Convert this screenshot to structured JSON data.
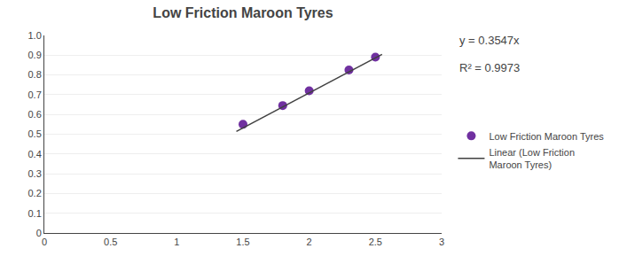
{
  "chart_data": {
    "type": "scatter",
    "title": "Low Friction Maroon Tyres",
    "series": [
      {
        "name": "Low Friction Maroon Tyres",
        "type": "scatter",
        "color": "#7030A0",
        "x": [
          1.5,
          1.8,
          2.0,
          2.3,
          2.5
        ],
        "values": [
          0.55,
          0.645,
          0.72,
          0.825,
          0.89
        ]
      },
      {
        "name": "Linear (Low Friction\nMaroon Tyres)",
        "type": "line",
        "color": "#404040",
        "x": [
          1.45,
          2.55
        ],
        "values": [
          0.514315,
          0.904485
        ]
      }
    ],
    "annotations": [
      "y = 0.3547x",
      "R² = 0.9973"
    ],
    "xlim": [
      0,
      3
    ],
    "ylim": [
      0,
      1.0
    ],
    "xticks": [
      0,
      0.5,
      1,
      1.5,
      2,
      2.5,
      3
    ],
    "yticks": [
      0,
      0.1,
      0.2,
      0.3,
      0.4,
      0.5,
      0.6,
      0.7,
      0.8,
      0.9,
      {
        "value": 1.0,
        "label": "1.0"
      }
    ],
    "grid": "y",
    "legend": "right"
  }
}
